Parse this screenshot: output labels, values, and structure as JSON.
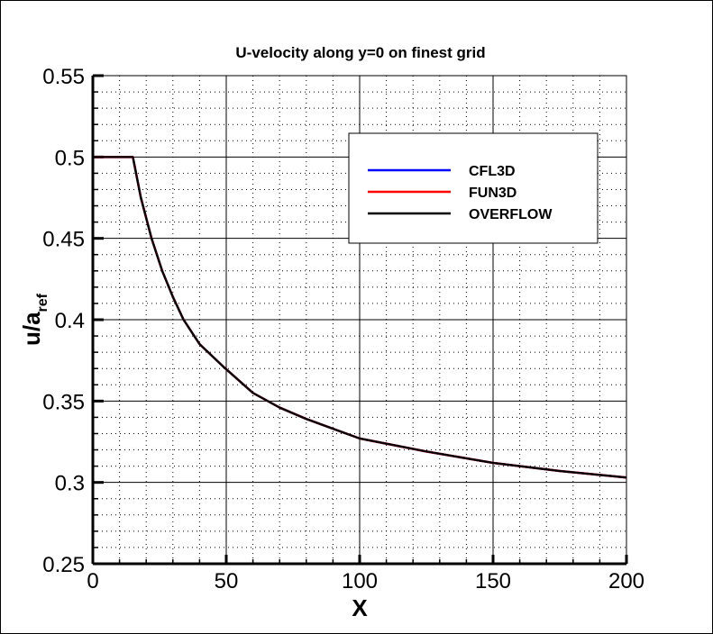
{
  "chart_data": {
    "type": "line",
    "title": "U-velocity along y=0 on finest grid",
    "xlabel": "X",
    "ylabel": "u/a",
    "ylabel_subscript": "ref",
    "xlim": [
      0,
      200
    ],
    "ylim": [
      0.25,
      0.55
    ],
    "xticks": [
      "0",
      "50",
      "100",
      "150",
      "200"
    ],
    "yticks": [
      "0.25",
      "0.3",
      "0.35",
      "0.4",
      "0.45",
      "0.5",
      "0.55"
    ],
    "grid": true,
    "legend_position": "top-right",
    "series": [
      {
        "name": "CFL3D",
        "color": "#0000ff",
        "x": [
          0,
          15,
          18,
          22,
          26,
          30,
          34,
          40,
          49,
          60,
          70,
          80,
          100,
          125,
          150,
          175,
          200
        ],
        "y": [
          0.5,
          0.5,
          0.475,
          0.45,
          0.43,
          0.414,
          0.4,
          0.385,
          0.371,
          0.355,
          0.346,
          0.339,
          0.327,
          0.319,
          0.312,
          0.307,
          0.303
        ]
      },
      {
        "name": "FUN3D",
        "color": "#ff0000",
        "x": [
          0,
          15,
          18,
          22,
          26,
          30,
          34,
          40,
          49,
          60,
          70,
          80,
          100,
          125,
          150,
          175,
          200
        ],
        "y": [
          0.5,
          0.5,
          0.475,
          0.45,
          0.43,
          0.414,
          0.4,
          0.385,
          0.371,
          0.355,
          0.346,
          0.339,
          0.327,
          0.319,
          0.312,
          0.307,
          0.303
        ]
      },
      {
        "name": "OVERFLOW",
        "color": "#000000",
        "x": [
          0,
          15,
          18,
          22,
          26,
          30,
          34,
          40,
          49,
          60,
          70,
          80,
          100,
          125,
          150,
          175,
          200
        ],
        "y": [
          0.5,
          0.5,
          0.475,
          0.45,
          0.43,
          0.414,
          0.4,
          0.385,
          0.371,
          0.355,
          0.346,
          0.339,
          0.327,
          0.319,
          0.312,
          0.307,
          0.303
        ]
      }
    ]
  }
}
